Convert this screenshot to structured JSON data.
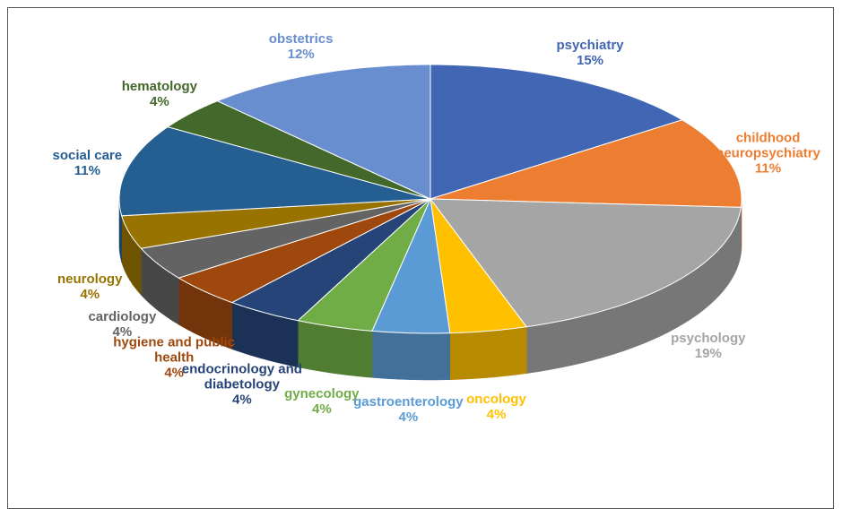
{
  "chart_data": {
    "type": "pie3d",
    "categories": [
      "psychiatry",
      "childhood neuropsychiatry",
      "psychology",
      "oncology",
      "gastroenterology",
      "gynecology",
      "endocrinology and diabetology",
      "hygiene and public health",
      "cardiology",
      "neurology",
      "social care",
      "hematology",
      "obstetrics"
    ],
    "values": [
      15,
      11,
      19,
      4,
      4,
      4,
      4,
      4,
      4,
      4,
      11,
      4,
      12
    ],
    "value_labels": [
      "15%",
      "11%",
      "19%",
      "4%",
      "4%",
      "4%",
      "4%",
      "4%",
      "4%",
      "4%",
      "11%",
      "4%",
      "12%"
    ],
    "colors": [
      "#4166b4",
      "#ed7d31",
      "#a5a5a5",
      "#ffc000",
      "#5b9bd5",
      "#70ad47",
      "#264478",
      "#9e480e",
      "#636363",
      "#997300",
      "#255e91",
      "#43682b",
      "#698ed0"
    ]
  }
}
